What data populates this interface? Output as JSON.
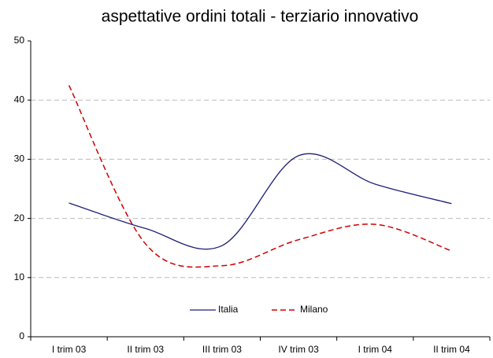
{
  "chart_data": {
    "type": "line",
    "title": "aspettative ordini totali - terziario innovativo",
    "categories": [
      "I trim 03",
      "II trim 03",
      "III trim 03",
      "IV trim 03",
      "I trim 04",
      "II trim 04"
    ],
    "series": [
      {
        "name": "Italia",
        "color": "#1f1f7a",
        "dash": "solid",
        "values": [
          22.6,
          18.3,
          15.4,
          30.6,
          25.8,
          22.5
        ]
      },
      {
        "name": "Milano",
        "color": "#d00000",
        "dash": "dashed",
        "values": [
          42.5,
          15.7,
          12.0,
          16.4,
          19.0,
          14.5
        ]
      }
    ],
    "ylim": [
      0,
      50
    ],
    "yticks": [
      0,
      10,
      20,
      30,
      40,
      50
    ],
    "grid": true,
    "legend": "bottom"
  }
}
